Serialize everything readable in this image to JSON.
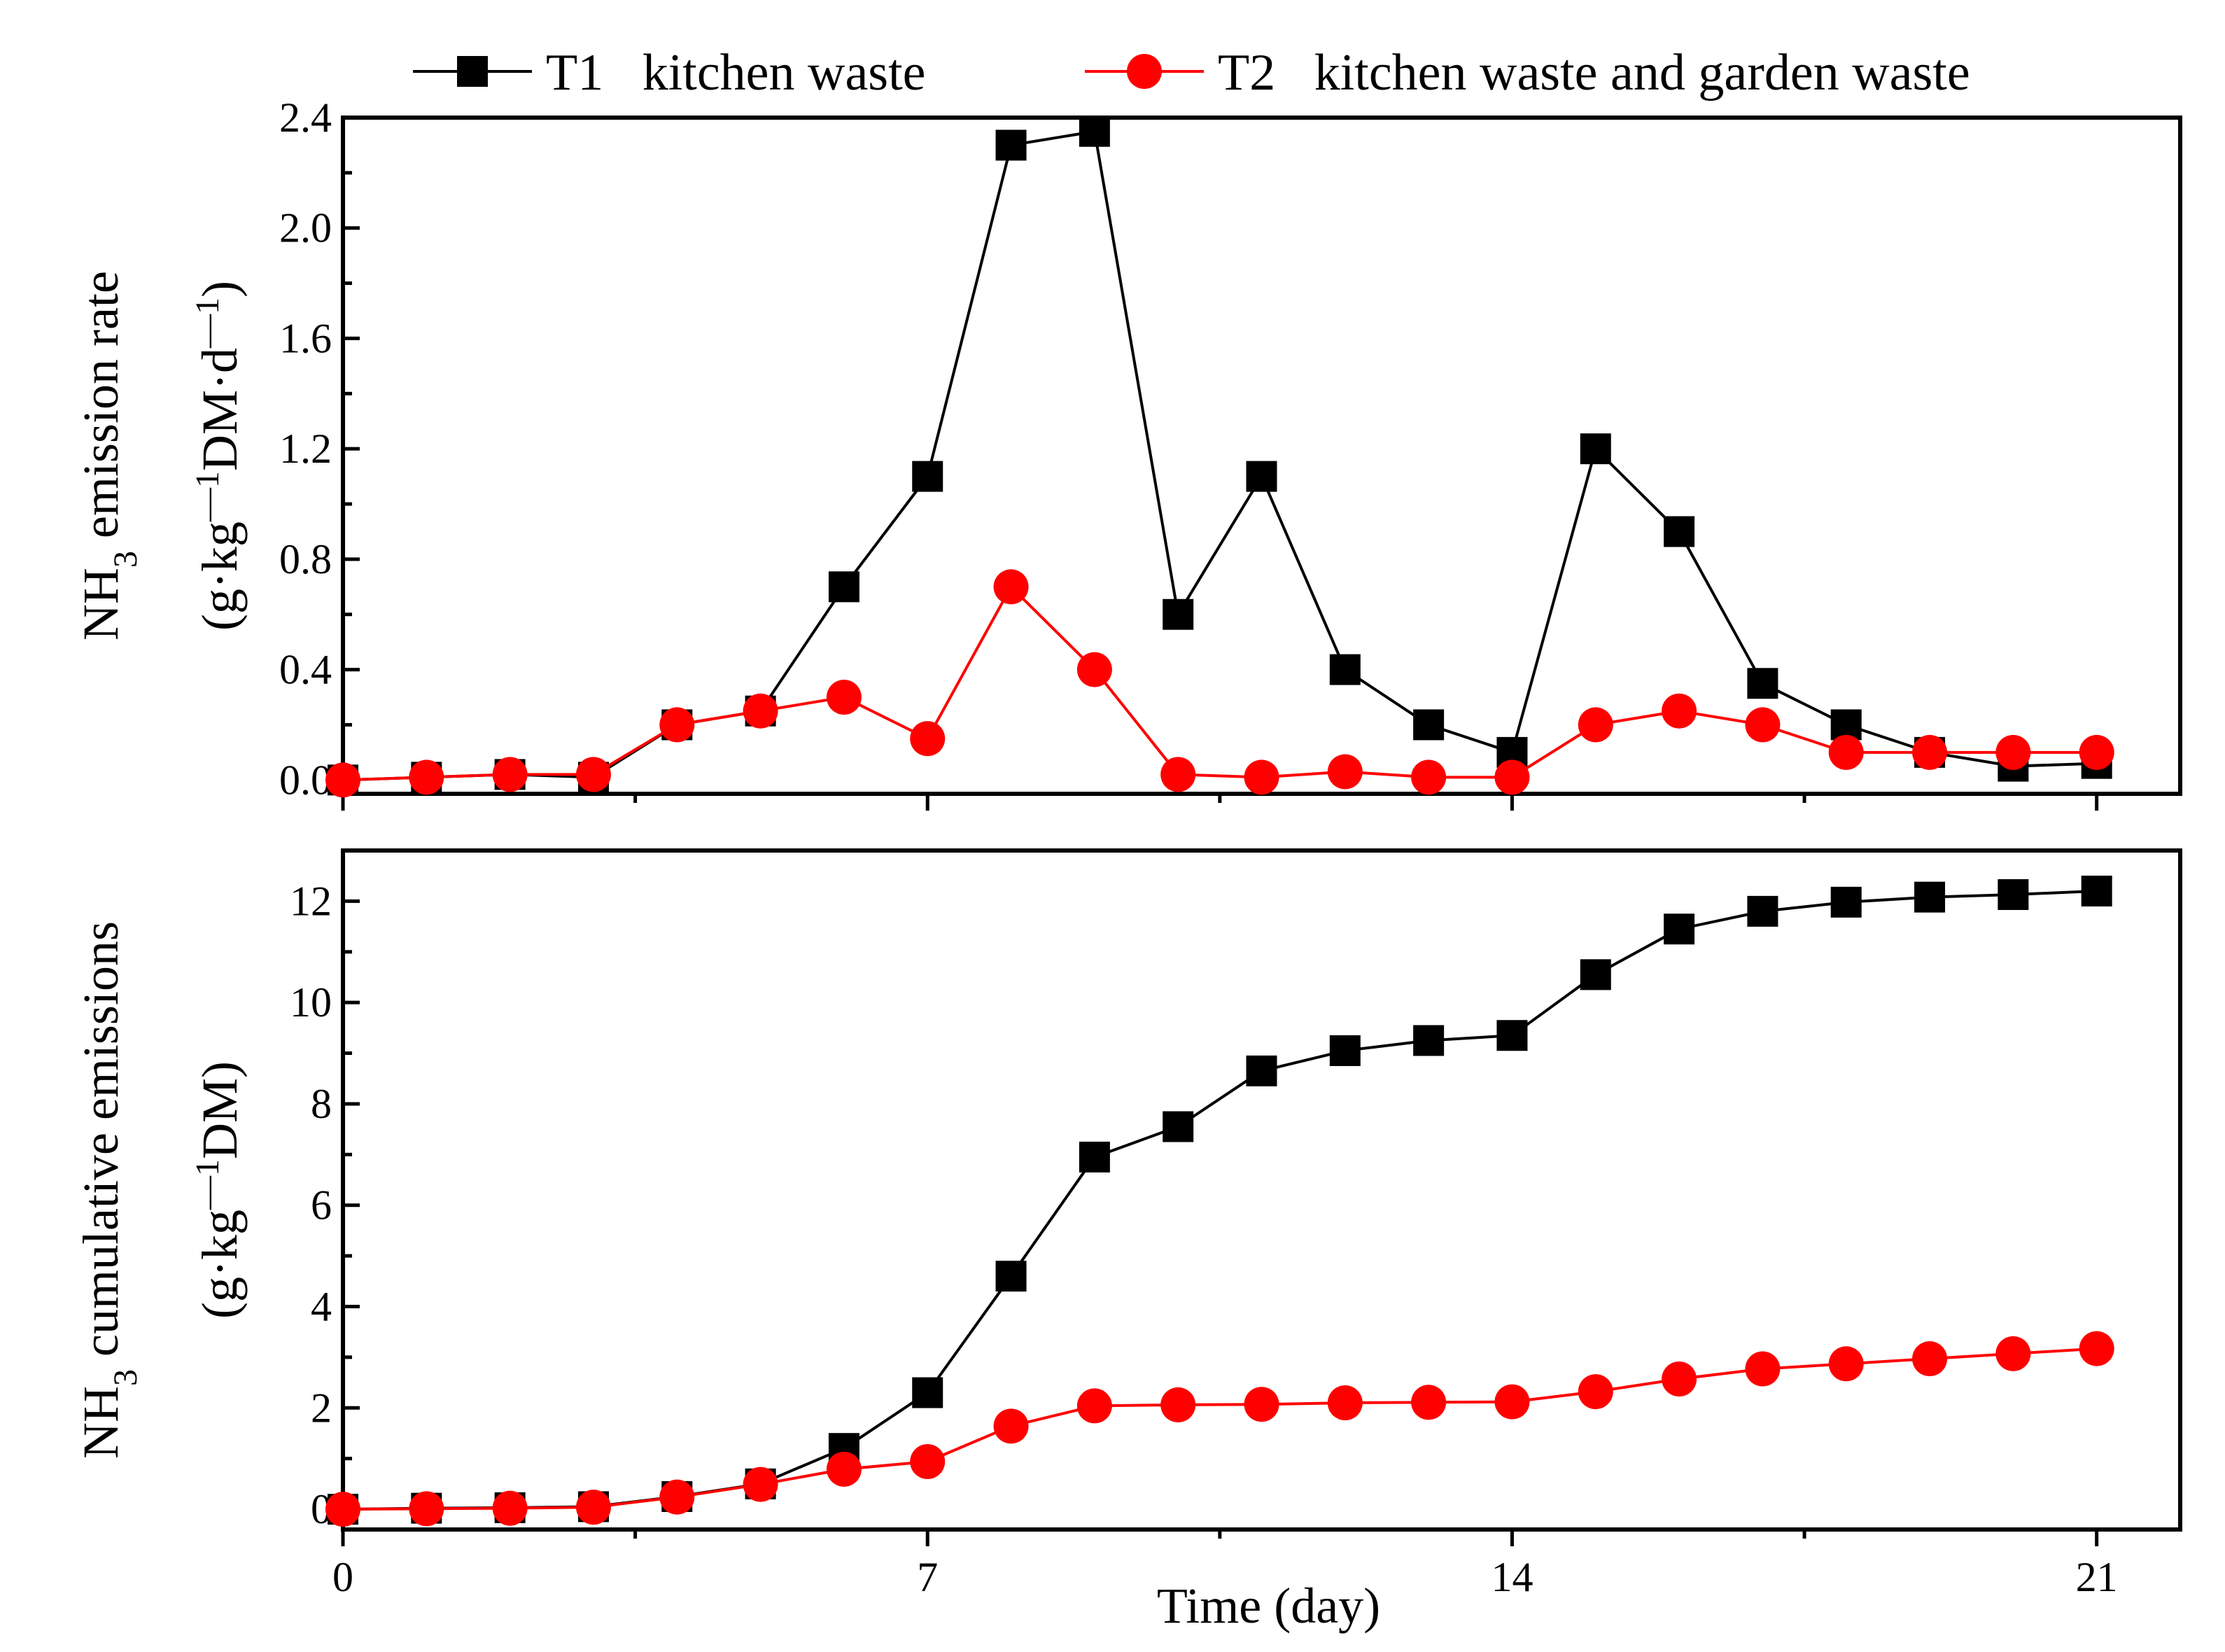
{
  "chart_data": [
    {
      "type": "line",
      "panel": "top",
      "ylabel_parts": [
        "NH",
        "3",
        " emission rate"
      ],
      "yunit_parts": [
        "(g·kg",
        "—1",
        "DM·d",
        "—1",
        ")"
      ],
      "xlabel": "",
      "xlim": [
        0,
        22
      ],
      "ylim": [
        -0.05,
        2.4
      ],
      "xticks": [
        0,
        7,
        14,
        21
      ],
      "xminor": [
        3.5,
        10.5,
        17.5
      ],
      "xtick_labels_shown": false,
      "yticks": [
        0.0,
        0.4,
        0.8,
        1.2,
        1.6,
        2.0,
        2.4
      ],
      "ytick_labels": [
        "0.0",
        "0.4",
        "0.8",
        "1.2",
        "1.6",
        "2.0",
        "2.4"
      ],
      "yminor": [
        0.2,
        0.6,
        1.0,
        1.4,
        1.8,
        2.2
      ],
      "x": [
        0,
        1,
        2,
        3,
        4,
        5,
        6,
        7,
        8,
        9,
        10,
        11,
        12,
        13,
        14,
        15,
        16,
        17,
        18,
        19,
        20,
        21
      ],
      "series": [
        {
          "name": "T1   kitchen waste",
          "color": "#000000",
          "marker": "square",
          "values": [
            0.0,
            0.01,
            0.02,
            0.01,
            0.2,
            0.25,
            0.7,
            1.1,
            2.3,
            2.35,
            0.6,
            1.1,
            0.4,
            0.2,
            0.1,
            1.2,
            0.9,
            0.35,
            0.2,
            0.1,
            0.05,
            0.06
          ]
        },
        {
          "name": "T2   kitchen waste and garden waste",
          "color": "#ff0000",
          "marker": "circle",
          "values": [
            0.0,
            0.01,
            0.02,
            0.02,
            0.2,
            0.25,
            0.3,
            0.15,
            0.7,
            0.4,
            0.02,
            0.01,
            0.03,
            0.01,
            0.01,
            0.2,
            0.25,
            0.2,
            0.1,
            0.1,
            0.1,
            0.1
          ]
        }
      ]
    },
    {
      "type": "line",
      "panel": "bottom",
      "ylabel_parts": [
        "NH",
        "3",
        " cumulative emissions"
      ],
      "yunit_parts": [
        "(g·kg",
        "—1",
        "DM)"
      ],
      "xlabel": "Time (day)",
      "xlim": [
        0,
        22
      ],
      "ylim": [
        -0.4,
        13
      ],
      "xticks": [
        0,
        7,
        14,
        21
      ],
      "xtick_labels": [
        "0",
        "7",
        "14",
        "21"
      ],
      "xminor": [
        3.5,
        10.5,
        17.5
      ],
      "xtick_labels_shown": true,
      "yticks": [
        0,
        2,
        4,
        6,
        8,
        10,
        12
      ],
      "ytick_labels": [
        "0",
        "2",
        "4",
        "6",
        "8",
        "10",
        "12"
      ],
      "yminor": [
        1,
        3,
        5,
        7,
        9,
        11
      ],
      "x": [
        0,
        1,
        2,
        3,
        4,
        5,
        6,
        7,
        8,
        9,
        10,
        11,
        12,
        13,
        14,
        15,
        16,
        17,
        18,
        19,
        20,
        21
      ],
      "series": [
        {
          "name": "T1   kitchen waste",
          "color": "#000000",
          "marker": "square",
          "values": [
            0.0,
            0.02,
            0.03,
            0.05,
            0.25,
            0.5,
            1.2,
            2.3,
            4.6,
            6.95,
            7.55,
            8.65,
            9.05,
            9.25,
            9.35,
            10.55,
            11.45,
            11.8,
            11.98,
            12.08,
            12.13,
            12.2
          ]
        },
        {
          "name": "T2   kitchen waste and garden waste",
          "color": "#ff0000",
          "marker": "circle",
          "values": [
            0.0,
            0.01,
            0.02,
            0.04,
            0.24,
            0.49,
            0.79,
            0.94,
            1.64,
            2.04,
            2.06,
            2.07,
            2.1,
            2.11,
            2.12,
            2.32,
            2.57,
            2.77,
            2.87,
            2.97,
            3.07,
            3.17
          ]
        }
      ]
    }
  ],
  "legend": {
    "position": "top",
    "entries": [
      {
        "label": "T1   kitchen waste",
        "color": "#000000",
        "marker": "square"
      },
      {
        "label": "T2   kitchen waste and garden waste",
        "color": "#ff0000",
        "marker": "circle"
      }
    ]
  }
}
